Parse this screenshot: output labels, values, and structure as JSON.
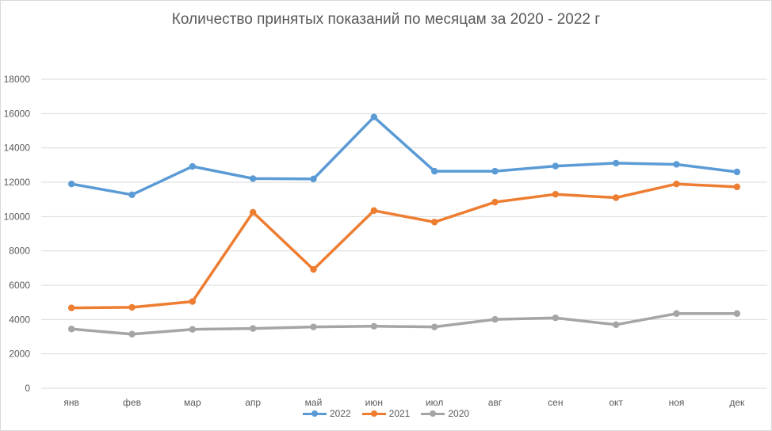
{
  "chart_data": {
    "type": "line",
    "title": "Количество принятых показаний по месяцам за 2020 - 2022 г",
    "xlabel": "",
    "ylabel": "",
    "categories": [
      "янв",
      "фев",
      "мар",
      "апр",
      "май",
      "июн",
      "июл",
      "авг",
      "сен",
      "окт",
      "ноя",
      "дек"
    ],
    "ylim": [
      0,
      18000
    ],
    "yticks": [
      0,
      2000,
      4000,
      6000,
      8000,
      10000,
      12000,
      14000,
      16000,
      18000
    ],
    "grid": true,
    "legend_position": "bottom",
    "series": [
      {
        "name": "2022",
        "color": "#5b9bd5",
        "values": [
          11900,
          11270,
          12920,
          12210,
          12190,
          15800,
          12640,
          12640,
          12940,
          13110,
          13040,
          12600
        ]
      },
      {
        "name": "2021",
        "color": "#ed7d31",
        "values": [
          4680,
          4710,
          5050,
          10250,
          6920,
          10350,
          9680,
          10840,
          11300,
          11100,
          11900,
          11730
        ]
      },
      {
        "name": "2020",
        "color": "#a5a5a5",
        "values": [
          3450,
          3150,
          3430,
          3480,
          3570,
          3610,
          3570,
          4010,
          4100,
          3700,
          4350,
          4350
        ]
      }
    ]
  }
}
